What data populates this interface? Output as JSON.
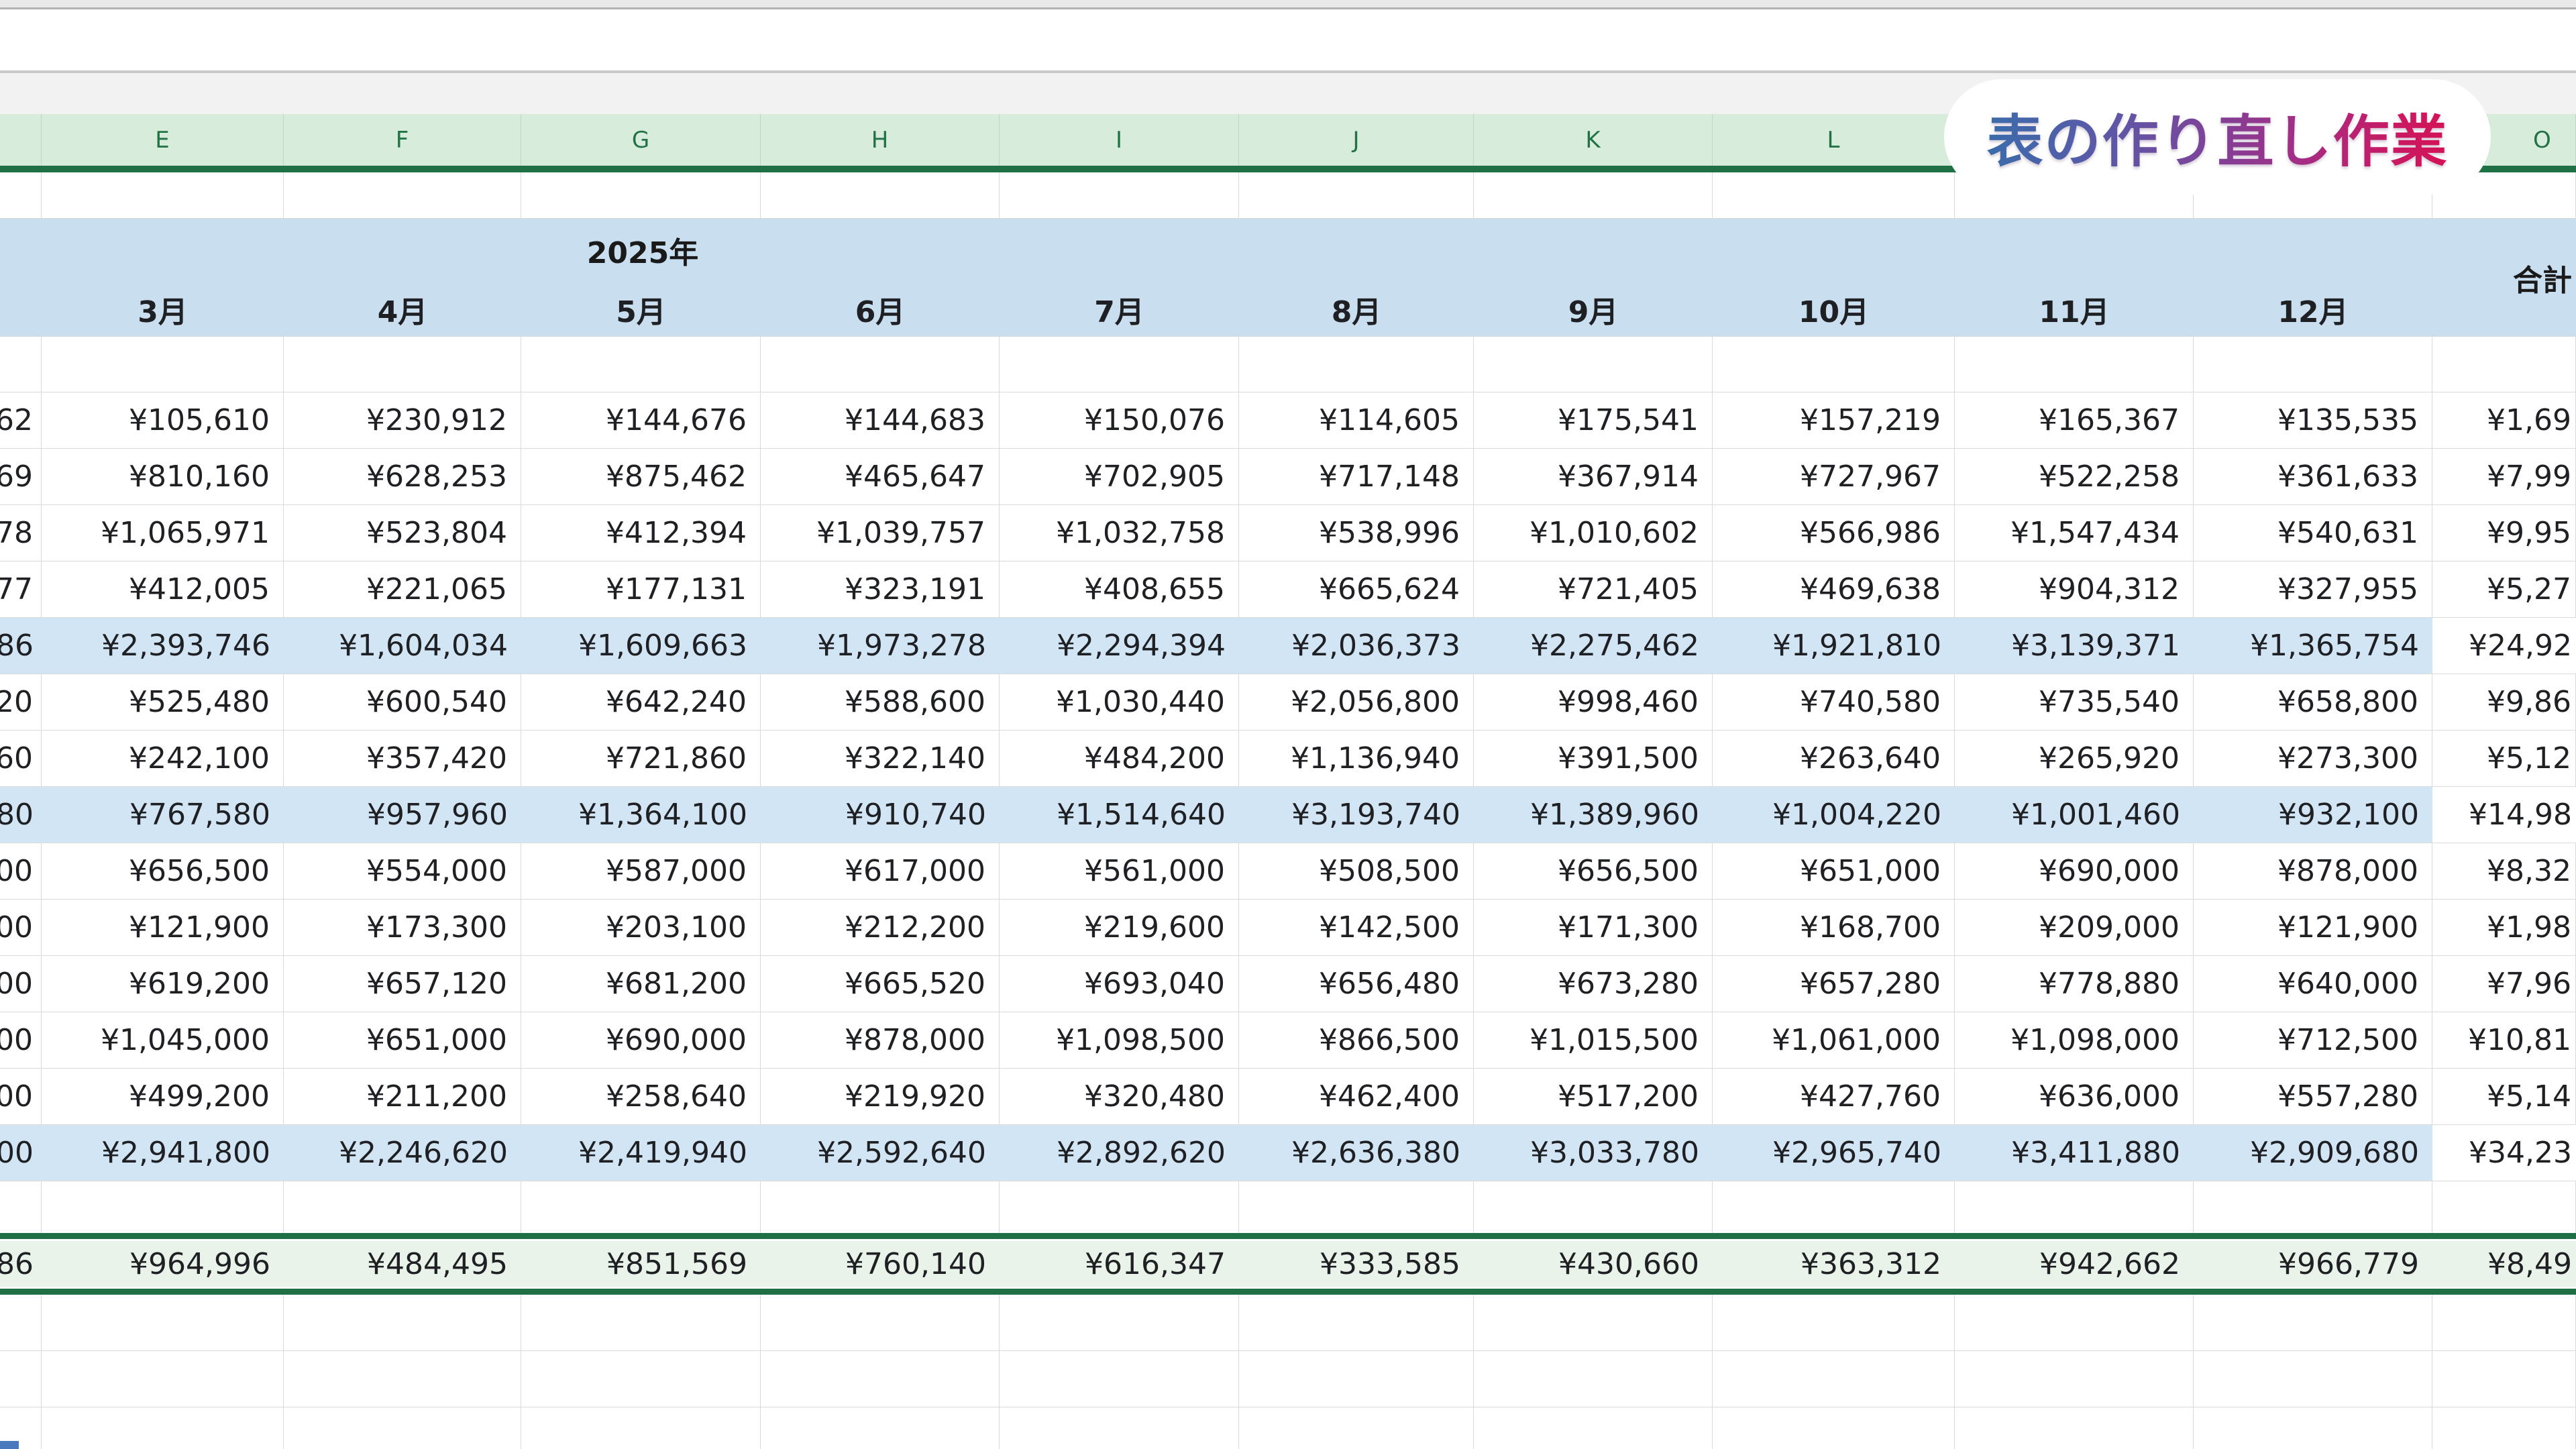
{
  "badge": {
    "text": "表の作り直し作業"
  },
  "sheet": {
    "column_letters": [
      "",
      "E",
      "F",
      "G",
      "H",
      "I",
      "J",
      "K",
      "L",
      "",
      "",
      "O"
    ],
    "header": {
      "year": "2025年",
      "months": [
        "3月",
        "4月",
        "5月",
        "6月",
        "7月",
        "8月",
        "9月",
        "10月",
        "11月",
        "12月"
      ],
      "total": "合計"
    },
    "rows": [
      {
        "d": "62",
        "values": [
          "¥105,610",
          "¥230,912",
          "¥144,676",
          "¥144,683",
          "¥150,076",
          "¥114,605",
          "¥175,541",
          "¥157,219",
          "¥165,367",
          "¥135,535"
        ],
        "o": "¥1,69",
        "subtotal": false
      },
      {
        "d": "69",
        "values": [
          "¥810,160",
          "¥628,253",
          "¥875,462",
          "¥465,647",
          "¥702,905",
          "¥717,148",
          "¥367,914",
          "¥727,967",
          "¥522,258",
          "¥361,633"
        ],
        "o": "¥7,99",
        "subtotal": false
      },
      {
        "d": "78",
        "values": [
          "¥1,065,971",
          "¥523,804",
          "¥412,394",
          "¥1,039,757",
          "¥1,032,758",
          "¥538,996",
          "¥1,010,602",
          "¥566,986",
          "¥1,547,434",
          "¥540,631"
        ],
        "o": "¥9,95",
        "subtotal": false
      },
      {
        "d": "77",
        "values": [
          "¥412,005",
          "¥221,065",
          "¥177,131",
          "¥323,191",
          "¥408,655",
          "¥665,624",
          "¥721,405",
          "¥469,638",
          "¥904,312",
          "¥327,955"
        ],
        "o": "¥5,27",
        "subtotal": false
      },
      {
        "d": "86",
        "values": [
          "¥2,393,746",
          "¥1,604,034",
          "¥1,609,663",
          "¥1,973,278",
          "¥2,294,394",
          "¥2,036,373",
          "¥2,275,462",
          "¥1,921,810",
          "¥3,139,371",
          "¥1,365,754"
        ],
        "o": "¥24,92",
        "subtotal": true
      },
      {
        "d": "20",
        "values": [
          "¥525,480",
          "¥600,540",
          "¥642,240",
          "¥588,600",
          "¥1,030,440",
          "¥2,056,800",
          "¥998,460",
          "¥740,580",
          "¥735,540",
          "¥658,800"
        ],
        "o": "¥9,86",
        "subtotal": false
      },
      {
        "d": "60",
        "values": [
          "¥242,100",
          "¥357,420",
          "¥721,860",
          "¥322,140",
          "¥484,200",
          "¥1,136,940",
          "¥391,500",
          "¥263,640",
          "¥265,920",
          "¥273,300"
        ],
        "o": "¥5,12",
        "subtotal": false
      },
      {
        "d": "80",
        "values": [
          "¥767,580",
          "¥957,960",
          "¥1,364,100",
          "¥910,740",
          "¥1,514,640",
          "¥3,193,740",
          "¥1,389,960",
          "¥1,004,220",
          "¥1,001,460",
          "¥932,100"
        ],
        "o": "¥14,98",
        "subtotal": true
      },
      {
        "d": "00",
        "values": [
          "¥656,500",
          "¥554,000",
          "¥587,000",
          "¥617,000",
          "¥561,000",
          "¥508,500",
          "¥656,500",
          "¥651,000",
          "¥690,000",
          "¥878,000"
        ],
        "o": "¥8,32",
        "subtotal": false
      },
      {
        "d": "00",
        "values": [
          "¥121,900",
          "¥173,300",
          "¥203,100",
          "¥212,200",
          "¥219,600",
          "¥142,500",
          "¥171,300",
          "¥168,700",
          "¥209,000",
          "¥121,900"
        ],
        "o": "¥1,98",
        "subtotal": false
      },
      {
        "d": "00",
        "values": [
          "¥619,200",
          "¥657,120",
          "¥681,200",
          "¥665,520",
          "¥693,040",
          "¥656,480",
          "¥673,280",
          "¥657,280",
          "¥778,880",
          "¥640,000"
        ],
        "o": "¥7,96",
        "subtotal": false
      },
      {
        "d": "00",
        "values": [
          "¥1,045,000",
          "¥651,000",
          "¥690,000",
          "¥878,000",
          "¥1,098,500",
          "¥866,500",
          "¥1,015,500",
          "¥1,061,000",
          "¥1,098,000",
          "¥712,500"
        ],
        "o": "¥10,81",
        "subtotal": false
      },
      {
        "d": "00",
        "values": [
          "¥499,200",
          "¥211,200",
          "¥258,640",
          "¥219,920",
          "¥320,480",
          "¥462,400",
          "¥517,200",
          "¥427,760",
          "¥636,000",
          "¥557,280"
        ],
        "o": "¥5,14",
        "subtotal": false
      },
      {
        "d": "00",
        "values": [
          "¥2,941,800",
          "¥2,246,620",
          "¥2,419,940",
          "¥2,592,640",
          "¥2,892,620",
          "¥2,636,380",
          "¥3,033,780",
          "¥2,965,740",
          "¥3,411,880",
          "¥2,909,680"
        ],
        "o": "¥34,23",
        "subtotal": true
      }
    ],
    "total_row": {
      "d": "86",
      "values": [
        "¥964,996",
        "¥484,495",
        "¥851,569",
        "¥760,140",
        "¥616,347",
        "¥333,585",
        "¥430,660",
        "¥363,312",
        "¥942,662",
        "¥966,779"
      ],
      "o": "¥8,49"
    }
  },
  "colors": {
    "header_green": "#d8ecdb",
    "header_text": "#217346",
    "dark_green": "#1f7145",
    "band_blue": "#c9dff0",
    "subtotal_blue": "#d2e5f4",
    "total_green_bg": "#eaf3ea",
    "gridline": "#dadada",
    "badge_gradient_start": "#3a6cab",
    "badge_gradient_end": "#d31355"
  }
}
